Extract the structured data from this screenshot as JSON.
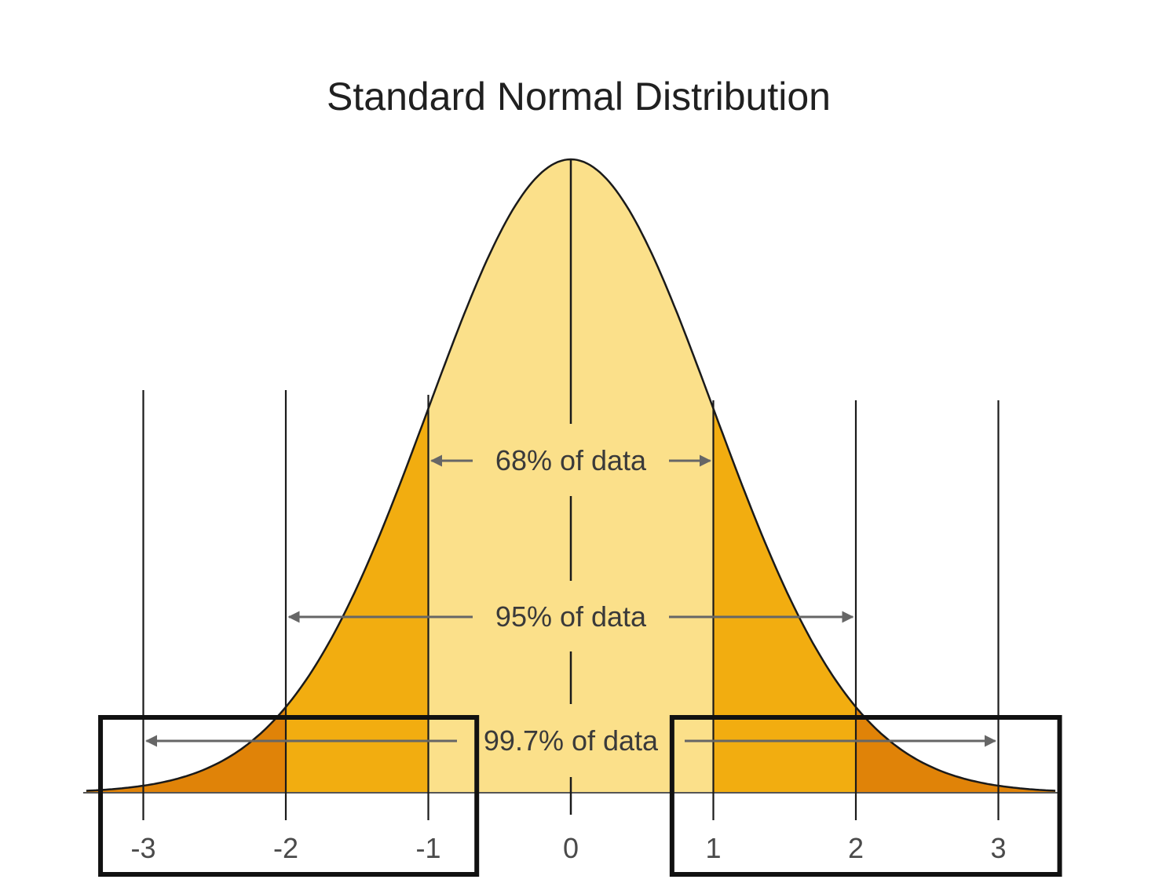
{
  "chart_data": {
    "type": "area",
    "title": "Standard Normal Distribution",
    "xlabel": "",
    "ylabel": "",
    "xlim": [
      -3.4,
      3.4
    ],
    "x_ticks": [
      {
        "value": -3,
        "label": "-3"
      },
      {
        "value": -2,
        "label": "-2"
      },
      {
        "value": -1,
        "label": "-1"
      },
      {
        "value": 0,
        "label": "0"
      },
      {
        "value": 1,
        "label": "1"
      },
      {
        "value": 2,
        "label": "2"
      },
      {
        "value": 3,
        "label": "3"
      }
    ],
    "mean": 0,
    "std_dev": 1,
    "regions": [
      {
        "from": -1,
        "to": 1,
        "color": "#FBE08A"
      },
      {
        "from": -2,
        "to": -1,
        "color": "#F2AD10"
      },
      {
        "from": 1,
        "to": 2,
        "color": "#F2AD10"
      },
      {
        "from": -3.4,
        "to": -2,
        "color": "#E08308"
      },
      {
        "from": 2,
        "to": 3.4,
        "color": "#E08308"
      }
    ],
    "annotations": [
      {
        "label": "68% of data",
        "from": -1,
        "to": 1
      },
      {
        "label": "95% of data",
        "from": -2,
        "to": 2
      },
      {
        "label": "99.7% of data",
        "from": -3,
        "to": 3
      }
    ],
    "highlight_boxes": [
      {
        "from": -3.3,
        "to": -0.66
      },
      {
        "from": 0.71,
        "to": 3.43
      }
    ],
    "grid": false,
    "legend": "none",
    "colors": {
      "curve": "#1a1a1a",
      "arrow": "#666666",
      "box": "#111111"
    }
  }
}
